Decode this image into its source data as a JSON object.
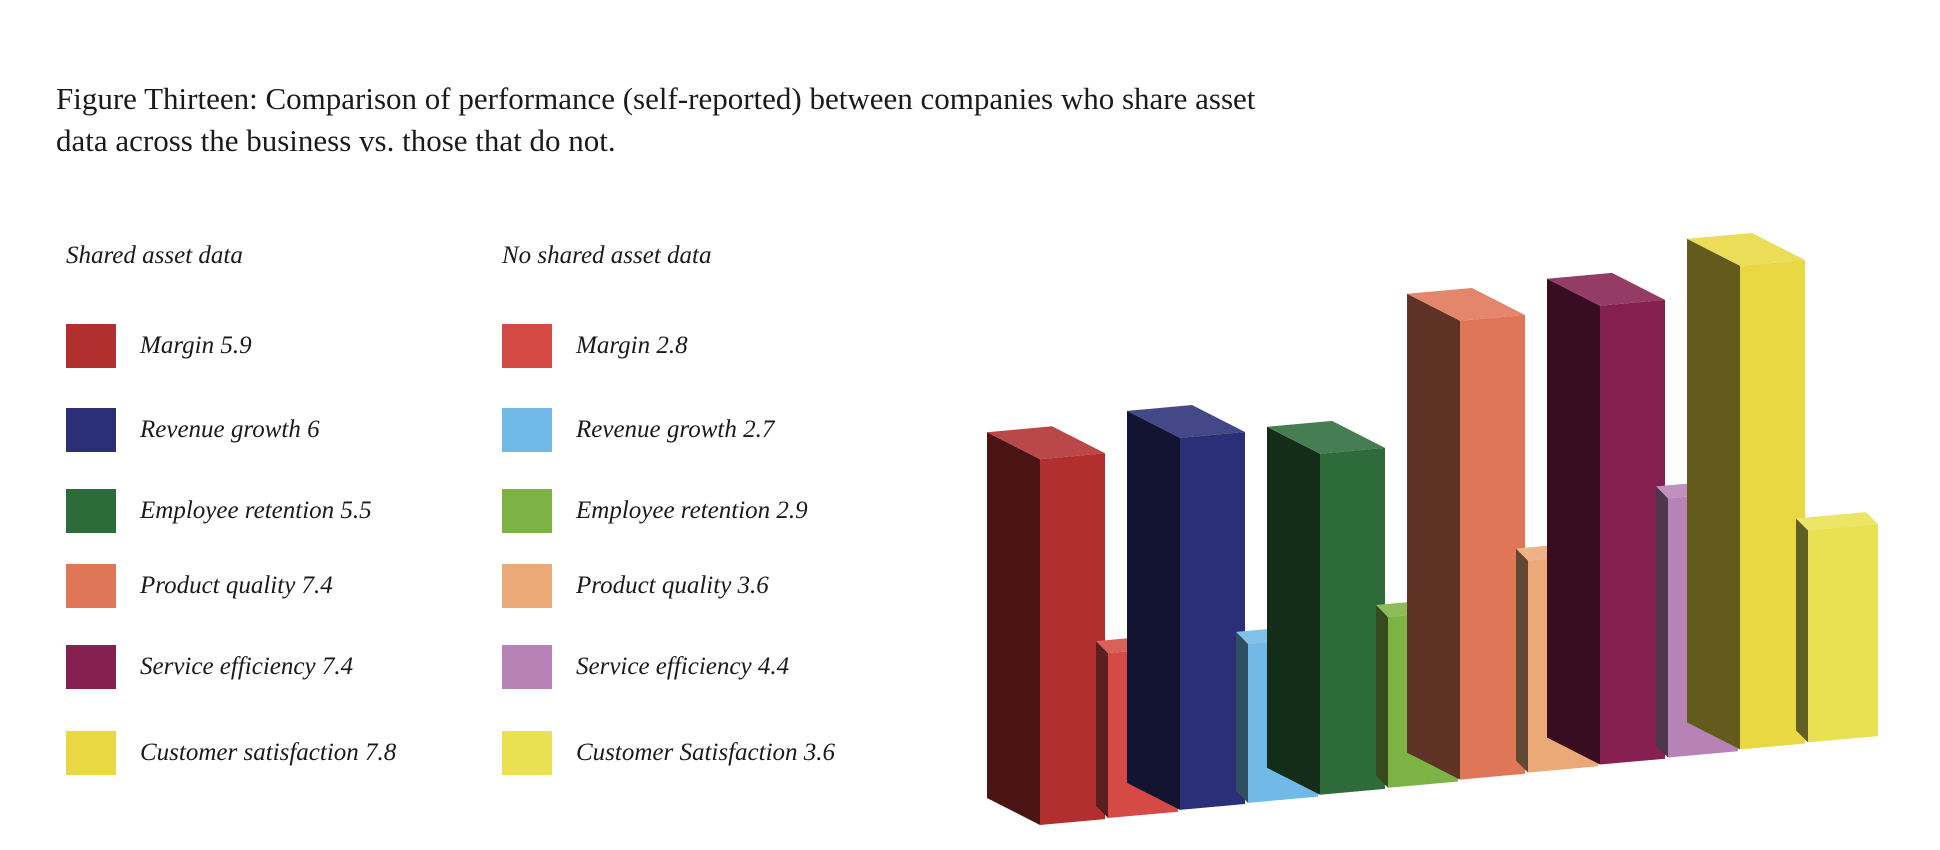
{
  "title": "Figure Thirteen: Comparison of performance (self-reported) between companies who share asset data across the business vs. those that do not.",
  "legend": {
    "shared_heading": "Shared asset data",
    "noshared_heading": "No shared asset data",
    "shared": [
      {
        "label": "Margin 5.9",
        "color": "#b22f30"
      },
      {
        "label": "Revenue growth 6",
        "color": "#2b2f78"
      },
      {
        "label": "Employee retention 5.5",
        "color": "#2e6b3b"
      },
      {
        "label": "Product quality 7.4",
        "color": "#df7658"
      },
      {
        "label": "Service efficiency 7.4",
        "color": "#852051"
      },
      {
        "label": "Customer satisfaction 7.8",
        "color": "#e9d842"
      }
    ],
    "noshared": [
      {
        "label": "Margin 2.8",
        "color": "#d54a44"
      },
      {
        "label": "Revenue growth 2.7",
        "color": "#71b9e6"
      },
      {
        "label": "Employee retention 2.9",
        "color": "#7db345"
      },
      {
        "label": "Product quality 3.6",
        "color": "#eaa976"
      },
      {
        "label": "Service efficiency 4.4",
        "color": "#b782b5"
      },
      {
        "label": "Customer Satisfaction 3.6",
        "color": "#e9e152"
      }
    ]
  },
  "chart_data": {
    "type": "bar",
    "categories": [
      "Margin",
      "Revenue growth",
      "Employee retention",
      "Product quality",
      "Service efficiency",
      "Customer satisfaction"
    ],
    "series": [
      {
        "name": "Shared asset data",
        "values": [
          5.9,
          6,
          5.5,
          7.4,
          7.4,
          7.8
        ],
        "colors": [
          "#b22f30",
          "#2b2f78",
          "#2e6b3b",
          "#df7658",
          "#852051",
          "#e9d842"
        ]
      },
      {
        "name": "No shared asset data",
        "values": [
          2.8,
          2.7,
          2.9,
          3.6,
          4.4,
          3.6
        ],
        "colors": [
          "#d54a44",
          "#71b9e6",
          "#7db345",
          "#eaa976",
          "#b782b5",
          "#e9e152"
        ]
      }
    ],
    "style": "3d-clustered",
    "grid": false
  }
}
